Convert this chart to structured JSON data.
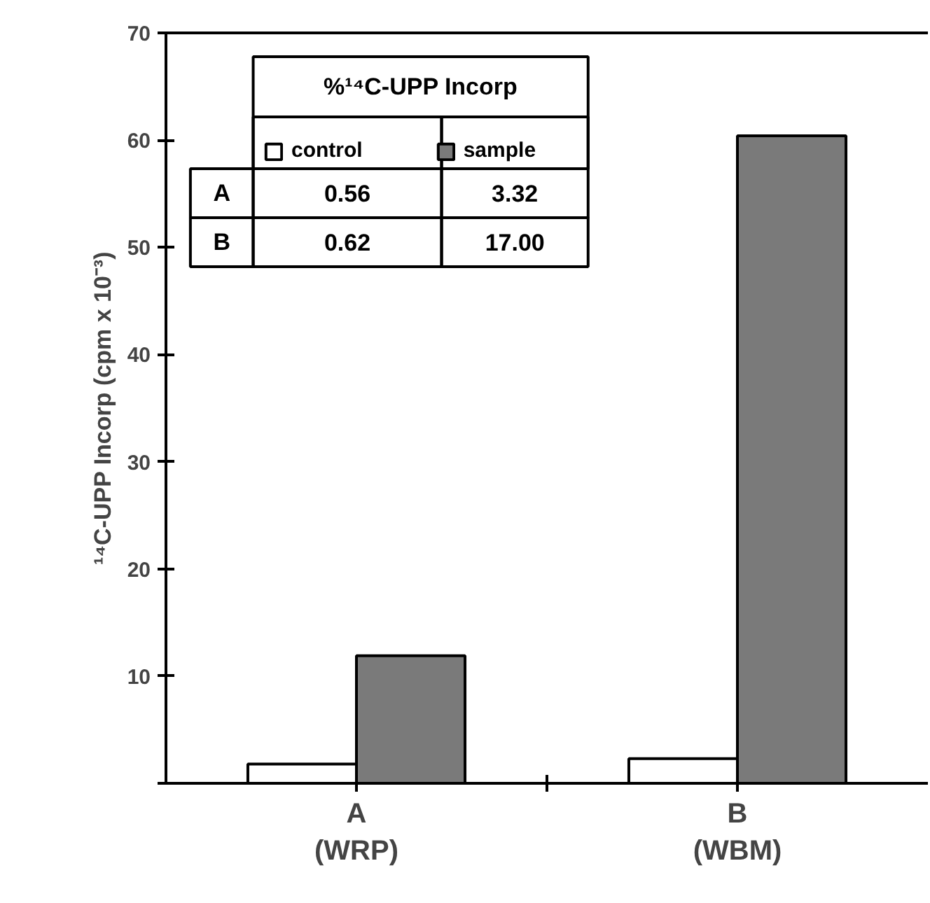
{
  "chart_data": {
    "type": "bar",
    "ylabel": "¹⁴C-UPP Incorp (cpm x 10⁻³)",
    "categories": [
      "A\n(WRP)",
      "B\n(WBM)"
    ],
    "series": [
      {
        "name": "control",
        "color": "#ffffff",
        "values": [
          1.8,
          2.3
        ]
      },
      {
        "name": "sample",
        "color": "#7a7a7a",
        "values": [
          11.9,
          60.4
        ]
      }
    ],
    "ylim": [
      0,
      70
    ],
    "yticks": [
      {
        "value": 0,
        "label": null
      },
      10,
      20,
      30,
      40,
      50,
      60,
      70
    ],
    "grid": false,
    "legend": "top left",
    "annotations": [
      "%¹⁴C-UPP Incorp",
      "A",
      "0.56",
      "3.32",
      "B",
      "0.62",
      "17.00"
    ]
  }
}
